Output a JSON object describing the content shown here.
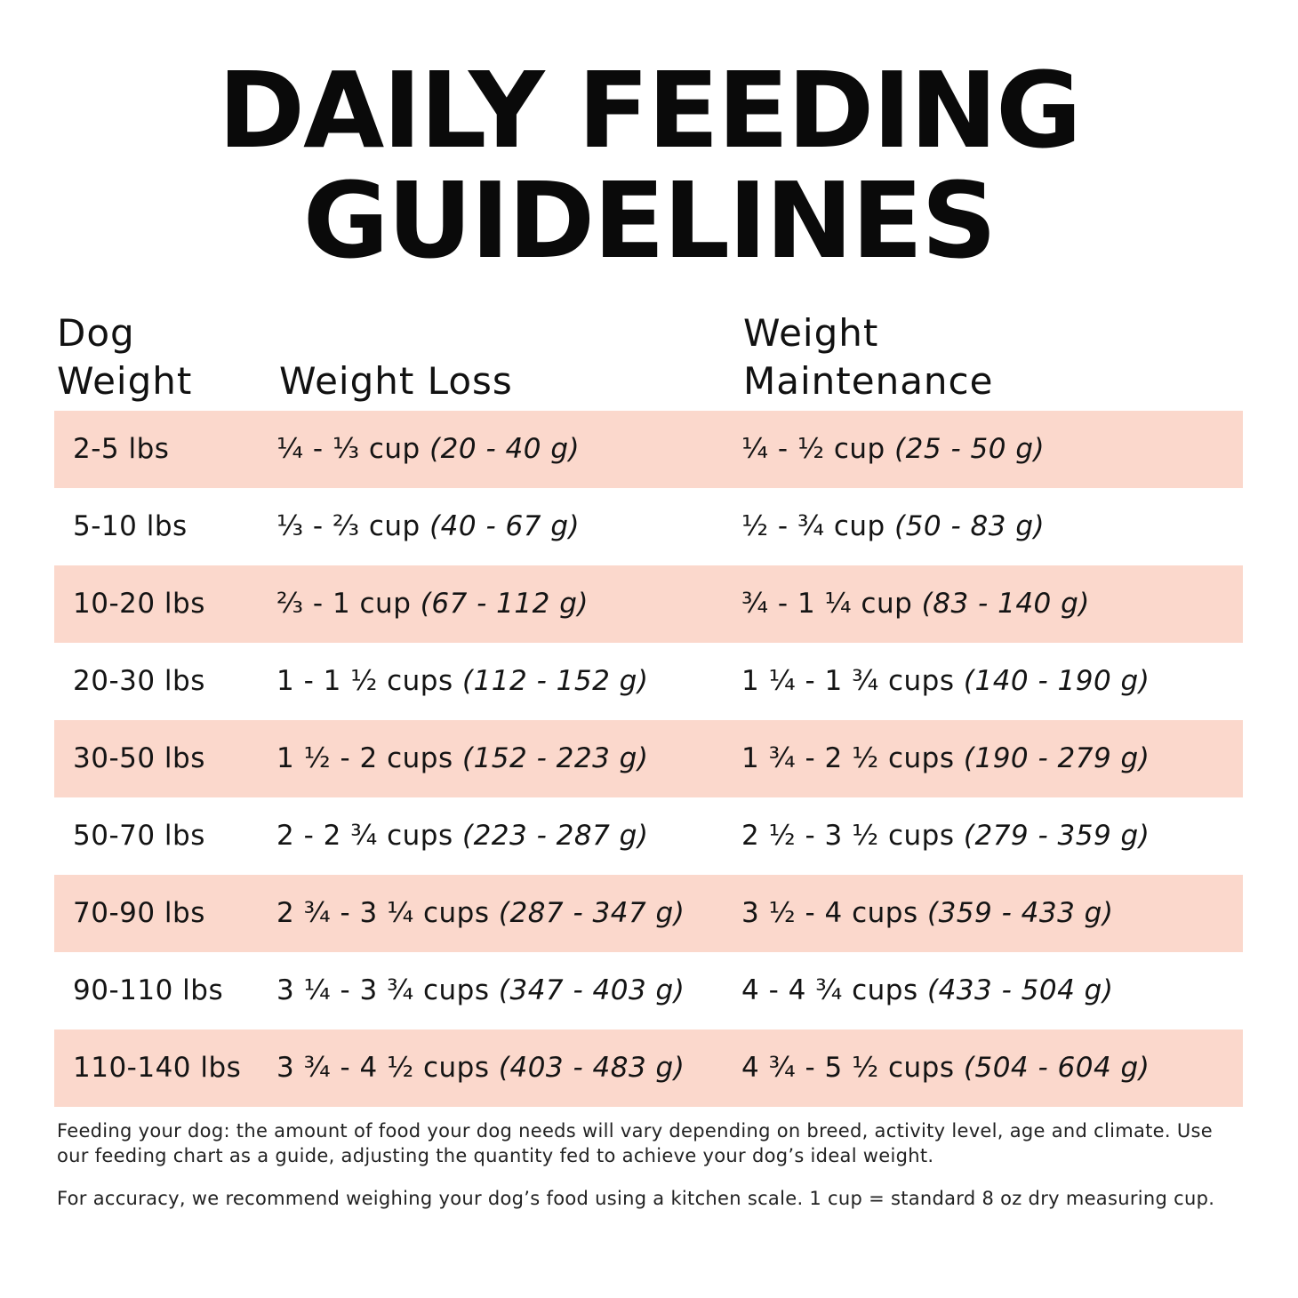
{
  "title": {
    "line1": "DAILY FEEDING",
    "line2": "GUIDELINES"
  },
  "columns": {
    "dog_weight": [
      "Dog",
      "Weight"
    ],
    "weight_loss": "Weight Loss",
    "weight_maintenance": [
      "Weight",
      "Maintenance"
    ]
  },
  "colors": {
    "row_shade": "#fbd8cc",
    "text": "#111111"
  },
  "rows": [
    {
      "weight": "2-5 lbs",
      "loss_cups": "¼ - ⅓ cup",
      "loss_grams": "(20 - 40 g)",
      "maint_cups": "¼ - ½ cup",
      "maint_grams": "(25 - 50 g)"
    },
    {
      "weight": "5-10 lbs",
      "loss_cups": "⅓ - ⅔ cup",
      "loss_grams": "(40 - 67 g)",
      "maint_cups": "½ - ¾ cup",
      "maint_grams": "(50 - 83 g)"
    },
    {
      "weight": "10-20 lbs",
      "loss_cups": "⅔ - 1 cup",
      "loss_grams": "(67 - 112 g)",
      "maint_cups": "¾ - 1 ¼ cup",
      "maint_grams": "(83 - 140 g)"
    },
    {
      "weight": "20-30 lbs",
      "loss_cups": "1 - 1 ½ cups",
      "loss_grams": "(112 - 152 g)",
      "maint_cups": "1 ¼ - 1 ¾ cups",
      "maint_grams": "(140 - 190 g)"
    },
    {
      "weight": "30-50 lbs",
      "loss_cups": "1 ½ - 2 cups",
      "loss_grams": "(152 - 223 g)",
      "maint_cups": "1 ¾ - 2 ½ cups",
      "maint_grams": "(190 - 279 g)"
    },
    {
      "weight": "50-70 lbs",
      "loss_cups": "2 - 2 ¾ cups",
      "loss_grams": "(223 - 287 g)",
      "maint_cups": "2 ½ - 3 ½ cups",
      "maint_grams": "(279 - 359 g)"
    },
    {
      "weight": "70-90 lbs",
      "loss_cups": "2 ¾ - 3 ¼ cups",
      "loss_grams": "(287 - 347 g)",
      "maint_cups": "3 ½ - 4 cups",
      "maint_grams": "(359 - 433 g)"
    },
    {
      "weight": "90-110 lbs",
      "loss_cups": "3 ¼ - 3 ¾ cups",
      "loss_grams": "(347 - 403 g)",
      "maint_cups": "4 - 4 ¾ cups",
      "maint_grams": "(433 - 504 g)"
    },
    {
      "weight": "110-140 lbs",
      "loss_cups": "3 ¾ - 4 ½ cups",
      "loss_grams": "(403 - 483 g)",
      "maint_cups": "4 ¾ - 5 ½ cups",
      "maint_grams": "(504 - 604 g)"
    }
  ],
  "notes": {
    "feeding": "Feeding your dog: the amount of food your dog needs will vary depending on breed, activity level, age and climate. Use our feeding chart as a guide, adjusting the quantity fed to achieve your dog’s ideal weight.",
    "accuracy": "For accuracy, we recommend weighing your dog’s food using a kitchen scale. 1 cup = standard 8 oz dry measuring cup."
  }
}
